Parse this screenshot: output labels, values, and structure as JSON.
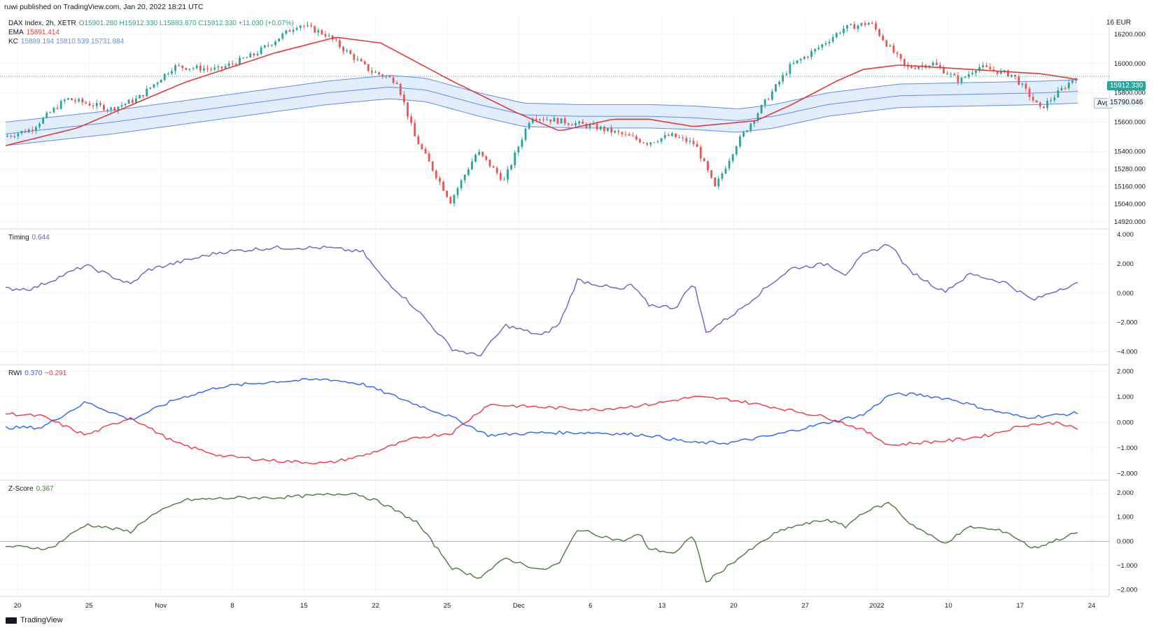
{
  "header": {
    "published": "ruwi published on TradingView.com, Jan 20, 2022 18:21 UTC"
  },
  "legend": {
    "symbol": "DAX Index, 2h, XETR",
    "ohlc": "O15901.280  H15912.330  L15883.870  C15912.330  +11.030 (+0.07%)",
    "ema_label": "EMA",
    "ema_value": "15891.414",
    "kc_label": "KC",
    "kc_values": "15889.194  15810.539  15731.884",
    "timing_label": "Timing",
    "timing_value": "0.644",
    "rwi_label": "RWI",
    "rwi_high": "0.370",
    "rwi_low": "−0.291",
    "zscore_label": "Z-Score",
    "zscore_value": "0.367"
  },
  "price_axis": {
    "currency": "EUR",
    "top_label": "16",
    "last_price": "15912.330",
    "avg_label": "Avg",
    "avg_value": "15790.046"
  },
  "footer": {
    "brand": "TradingView"
  },
  "colors": {
    "up": "#26a69a",
    "down": "#ef5350",
    "ema": "#e53935",
    "kc": "#5b8def",
    "kc_fill": "#e3eefc",
    "timing": "#7e57c2",
    "rwi_high": "#2962ff",
    "rwi_low": "#f23645",
    "zscore": "#4c7a3d",
    "zero_line": "#c997cf",
    "grid": "#f0f3fa",
    "divider": "#d1d4dc"
  },
  "chart_data": [
    {
      "type": "candlestick",
      "title": "DAX Index, 2h, XETR",
      "x_ticks": [
        "20",
        "25",
        "Nov",
        "8",
        "15",
        "22",
        "25",
        "Dec",
        "6",
        "13",
        "20",
        "27",
        "2022",
        "10",
        "17",
        "24"
      ],
      "y_ticks": [
        16200,
        16000,
        15800,
        15600,
        15400,
        15280,
        15160,
        15040,
        14920
      ],
      "ylim": [
        14900,
        16300
      ],
      "close_path_anchors": [
        [
          0,
          15500
        ],
        [
          15,
          15550
        ],
        [
          35,
          15760
        ],
        [
          60,
          15690
        ],
        [
          75,
          15760
        ],
        [
          95,
          15980
        ],
        [
          120,
          15960
        ],
        [
          140,
          16060
        ],
        [
          165,
          16270
        ],
        [
          180,
          16200
        ],
        [
          195,
          16050
        ],
        [
          205,
          15950
        ],
        [
          220,
          15880
        ],
        [
          230,
          15500
        ],
        [
          250,
          15060
        ],
        [
          265,
          15400
        ],
        [
          280,
          15200
        ],
        [
          295,
          15640
        ],
        [
          330,
          15570
        ],
        [
          345,
          15520
        ],
        [
          360,
          15460
        ],
        [
          373,
          15510
        ],
        [
          387,
          15450
        ],
        [
          398,
          15150
        ],
        [
          410,
          15450
        ],
        [
          425,
          15720
        ],
        [
          440,
          15980
        ],
        [
          455,
          16100
        ],
        [
          470,
          16240
        ],
        [
          485,
          16280
        ],
        [
          495,
          16120
        ],
        [
          505,
          15970
        ],
        [
          520,
          16000
        ],
        [
          535,
          15880
        ],
        [
          545,
          15980
        ],
        [
          565,
          15920
        ],
        [
          580,
          15690
        ],
        [
          590,
          15800
        ],
        [
          600,
          15912
        ]
      ],
      "ema_anchors": [
        [
          0,
          15440
        ],
        [
          40,
          15560
        ],
        [
          100,
          15870
        ],
        [
          150,
          16070
        ],
        [
          185,
          16180
        ],
        [
          210,
          16140
        ],
        [
          250,
          15880
        ],
        [
          285,
          15670
        ],
        [
          310,
          15540
        ],
        [
          340,
          15620
        ],
        [
          360,
          15620
        ],
        [
          385,
          15570
        ],
        [
          420,
          15610
        ],
        [
          440,
          15720
        ],
        [
          465,
          15880
        ],
        [
          480,
          15960
        ],
        [
          500,
          15990
        ],
        [
          540,
          15960
        ],
        [
          580,
          15930
        ],
        [
          600,
          15891
        ]
      ],
      "kc_mid_anchors": [
        [
          0,
          15520
        ],
        [
          60,
          15600
        ],
        [
          120,
          15700
        ],
        [
          180,
          15800
        ],
        [
          215,
          15840
        ],
        [
          235,
          15820
        ],
        [
          265,
          15720
        ],
        [
          290,
          15650
        ],
        [
          320,
          15640
        ],
        [
          360,
          15640
        ],
        [
          385,
          15630
        ],
        [
          410,
          15610
        ],
        [
          430,
          15640
        ],
        [
          460,
          15720
        ],
        [
          500,
          15780
        ],
        [
          540,
          15790
        ],
        [
          580,
          15800
        ],
        [
          600,
          15810
        ]
      ],
      "kc_band_halfwidth": 80,
      "last_close": 15912.33,
      "avg": 15790.046
    },
    {
      "type": "line",
      "title": "Timing",
      "y_ticks": [
        4.0,
        2.0,
        0.0,
        -2.0,
        -4.0
      ],
      "ylim": [
        -4.6,
        4.1
      ],
      "series": [
        {
          "name": "Timing",
          "anchors": [
            [
              0,
              0.3
            ],
            [
              15,
              0.3
            ],
            [
              45,
              1.9
            ],
            [
              70,
              0.6
            ],
            [
              80,
              1.6
            ],
            [
              120,
              2.8
            ],
            [
              150,
              3.1
            ],
            [
              180,
              3.1
            ],
            [
              200,
              2.8
            ],
            [
              210,
              1.2
            ],
            [
              230,
              -1.1
            ],
            [
              250,
              -3.8
            ],
            [
              265,
              -4.3
            ],
            [
              280,
              -2.2
            ],
            [
              300,
              -2.9
            ],
            [
              310,
              -2.1
            ],
            [
              320,
              0.9
            ],
            [
              345,
              0.2
            ],
            [
              350,
              0.6
            ],
            [
              360,
              -0.8
            ],
            [
              375,
              -1.0
            ],
            [
              385,
              0.8
            ],
            [
              392,
              -2.7
            ],
            [
              410,
              -1.2
            ],
            [
              430,
              0.8
            ],
            [
              440,
              1.7
            ],
            [
              460,
              2.0
            ],
            [
              470,
              1.3
            ],
            [
              480,
              2.6
            ],
            [
              495,
              3.4
            ],
            [
              505,
              1.6
            ],
            [
              525,
              0.1
            ],
            [
              540,
              1.3
            ],
            [
              560,
              0.7
            ],
            [
              575,
              -0.5
            ],
            [
              590,
              0.3
            ],
            [
              600,
              0.644
            ]
          ]
        }
      ]
    },
    {
      "type": "line",
      "title": "RWI",
      "y_ticks": [
        2.0,
        1.0,
        0.0,
        -1.0,
        -2.0
      ],
      "ylim": [
        -2.1,
        2.1
      ],
      "series": [
        {
          "name": "RWI high",
          "anchors": [
            [
              0,
              -0.2
            ],
            [
              20,
              -0.2
            ],
            [
              45,
              0.8
            ],
            [
              70,
              0.1
            ],
            [
              95,
              0.9
            ],
            [
              120,
              1.4
            ],
            [
              150,
              1.6
            ],
            [
              180,
              1.7
            ],
            [
              200,
              1.5
            ],
            [
              230,
              0.7
            ],
            [
              250,
              0.2
            ],
            [
              270,
              -0.5
            ],
            [
              300,
              -0.4
            ],
            [
              330,
              -0.4
            ],
            [
              360,
              -0.5
            ],
            [
              385,
              -0.8
            ],
            [
              405,
              -0.8
            ],
            [
              430,
              -0.5
            ],
            [
              460,
              0.0
            ],
            [
              480,
              0.3
            ],
            [
              495,
              1.1
            ],
            [
              510,
              1.1
            ],
            [
              530,
              0.9
            ],
            [
              550,
              0.5
            ],
            [
              570,
              0.2
            ],
            [
              590,
              0.3
            ],
            [
              600,
              0.37
            ]
          ]
        },
        {
          "name": "RWI low",
          "anchors": [
            [
              0,
              0.35
            ],
            [
              20,
              0.25
            ],
            [
              45,
              -0.5
            ],
            [
              70,
              0.2
            ],
            [
              95,
              -0.8
            ],
            [
              120,
              -1.3
            ],
            [
              150,
              -1.5
            ],
            [
              180,
              -1.6
            ],
            [
              200,
              -1.3
            ],
            [
              230,
              -0.6
            ],
            [
              250,
              -0.4
            ],
            [
              270,
              0.7
            ],
            [
              300,
              0.6
            ],
            [
              330,
              0.5
            ],
            [
              360,
              0.7
            ],
            [
              385,
              1.0
            ],
            [
              405,
              0.9
            ],
            [
              430,
              0.6
            ],
            [
              460,
              0.2
            ],
            [
              480,
              -0.3
            ],
            [
              495,
              -0.9
            ],
            [
              510,
              -0.8
            ],
            [
              530,
              -0.7
            ],
            [
              550,
              -0.5
            ],
            [
              570,
              -0.1
            ],
            [
              590,
              0.0
            ],
            [
              600,
              -0.291
            ]
          ]
        }
      ]
    },
    {
      "type": "line",
      "title": "Z-Score",
      "y_ticks": [
        2.0,
        1.0,
        0.0,
        -1.0,
        -2.0
      ],
      "ylim": [
        -2.1,
        2.35
      ],
      "series": [
        {
          "name": "Z-Score",
          "anchors": [
            [
              0,
              -0.2
            ],
            [
              25,
              -0.3
            ],
            [
              45,
              0.7
            ],
            [
              70,
              0.4
            ],
            [
              80,
              1.0
            ],
            [
              100,
              1.7
            ],
            [
              130,
              1.8
            ],
            [
              150,
              1.8
            ],
            [
              175,
              1.9
            ],
            [
              195,
              2.0
            ],
            [
              210,
              1.6
            ],
            [
              230,
              0.8
            ],
            [
              250,
              -1.1
            ],
            [
              265,
              -1.5
            ],
            [
              280,
              -0.7
            ],
            [
              300,
              -1.2
            ],
            [
              310,
              -0.9
            ],
            [
              320,
              0.5
            ],
            [
              345,
              0.0
            ],
            [
              355,
              0.3
            ],
            [
              360,
              -0.3
            ],
            [
              375,
              -0.5
            ],
            [
              385,
              0.3
            ],
            [
              392,
              -1.7
            ],
            [
              410,
              -0.7
            ],
            [
              430,
              0.3
            ],
            [
              440,
              0.6
            ],
            [
              460,
              0.9
            ],
            [
              470,
              0.6
            ],
            [
              480,
              1.2
            ],
            [
              495,
              1.6
            ],
            [
              505,
              0.8
            ],
            [
              525,
              -0.1
            ],
            [
              540,
              0.6
            ],
            [
              560,
              0.4
            ],
            [
              575,
              -0.3
            ],
            [
              590,
              0.1
            ],
            [
              600,
              0.367
            ]
          ]
        }
      ]
    }
  ]
}
